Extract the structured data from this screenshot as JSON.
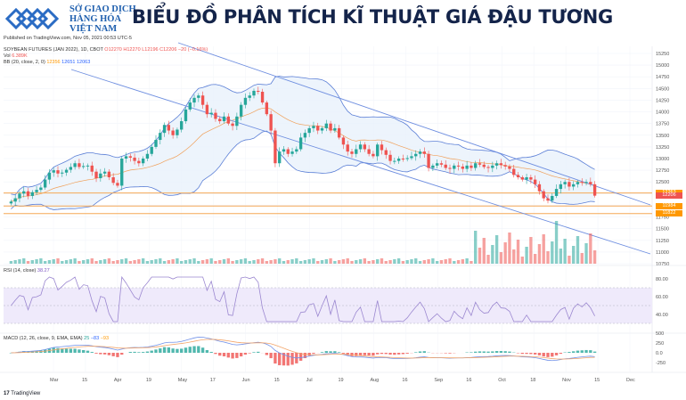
{
  "header": {
    "brand_lines": [
      "SỞ GIAO DỊCH",
      "HÀNG HÓA",
      "VIỆT NAM"
    ],
    "title": "BIỂU ĐỒ PHÂN TÍCH KĨ THUẬT GIÁ ĐẬU TƯƠNG",
    "published": "Published on TradingView.com, Nov 05, 2021 00:53 UTC-5"
  },
  "legend": {
    "symbol": "SOYBEAN FUTURES (JAN 2022), 1D, CBOT",
    "open": "O12270",
    "high": "H12270",
    "low": "L12196",
    "close": "C12206",
    "change": "−20 (−0.16%)",
    "vol_label": "Vol",
    "vol_value": "6.389K",
    "bb_label": "BB (20, close, 2, 0)",
    "bb_basis": "12356",
    "bb_upper": "12651",
    "bb_lower": "12063",
    "rsi_label": "RSI (14, close)",
    "rsi_value": "38.27",
    "macd_label": "MACD (12, 26, close, 9, EMA, EMA)",
    "macd_hist": "25",
    "macd_line": "−83",
    "macd_signal": "−93"
  },
  "footer": {
    "tradingview": "TradingView"
  },
  "colors": {
    "up": "#26a69a",
    "down": "#ef5350",
    "bb": "#5b7fd6",
    "bb_fill": "#e8f1fb",
    "basis": "#f0a05a",
    "support": "#f5a856",
    "rsi": "#9b87d0",
    "rsi_band": "#efeafb",
    "macd": "#6f90e8",
    "signal": "#f3a56a"
  },
  "price_tags": [
    {
      "label": "12263",
      "price": 12263,
      "color": "#ff9800"
    },
    {
      "label": "12206",
      "price": 12206,
      "color": "#ef5350"
    },
    {
      "label": "11984",
      "price": 11984,
      "color": "#ff9800"
    },
    {
      "label": "11822",
      "price": 11822,
      "color": "#ff9800"
    }
  ],
  "chart_data": {
    "type": "candlestick",
    "title": "SOYBEAN FUTURES (JAN 2022), 1D, CBOT",
    "price_axis": {
      "min": 10750,
      "max": 15250,
      "step": 250,
      "ticks": [
        "15250",
        "15000",
        "14750",
        "14500",
        "14250",
        "14000",
        "13750",
        "13500",
        "13250",
        "13000",
        "12750",
        "12500",
        "12250",
        "12000",
        "11750",
        "11500",
        "11250",
        "11000",
        "10750"
      ]
    },
    "x_ticks": [
      "Mar",
      "15",
      "Apr",
      "19",
      "May",
      "17",
      "Jun",
      "15",
      "Jul",
      "19",
      "Aug",
      "16",
      "Sep",
      "16",
      "Oct",
      "18",
      "Nov",
      "15",
      "Dec"
    ],
    "closes": [
      12080,
      12150,
      12250,
      12300,
      12200,
      12280,
      12330,
      12380,
      12550,
      12700,
      12750,
      12680,
      12700,
      12760,
      12820,
      12900,
      12820,
      12840,
      12850,
      12720,
      12580,
      12680,
      12720,
      12600,
      12480,
      12420,
      13000,
      13050,
      13020,
      12950,
      12900,
      13000,
      13100,
      13250,
      13400,
      13550,
      13720,
      13600,
      13500,
      13620,
      13800,
      14050,
      14200,
      14300,
      14350,
      14150,
      13950,
      13980,
      13850,
      13800,
      13900,
      13750,
      13700,
      13900,
      14150,
      14300,
      14350,
      14450,
      14430,
      14200,
      13950,
      13600,
      12900,
      13150,
      13200,
      13100,
      13150,
      13200,
      13450,
      13550,
      13650,
      13700,
      13600,
      13650,
      13750,
      13600,
      13650,
      13450,
      13300,
      13150,
      13100,
      13200,
      13300,
      13200,
      13100,
      13050,
      13300,
      13180,
      13080,
      12950,
      12950,
      13000,
      12990,
      13010,
      13050,
      13100,
      13150,
      13100,
      12800,
      12850,
      12900,
      12870,
      12800,
      12780,
      12850,
      12830,
      12780,
      12850,
      12800,
      12900,
      12870,
      12820,
      12800,
      12850,
      12900,
      12860,
      12830,
      12780,
      12650,
      12600,
      12550,
      12600,
      12550,
      12450,
      12300,
      12150,
      12100,
      12200,
      12350,
      12450,
      12500,
      12400,
      12450,
      12500,
      12480,
      12500,
      12450,
      12206
    ],
    "rsi": {
      "label": "RSI (14, close)",
      "value": 38.27,
      "axis": [
        "80.00",
        "60.00",
        "40.00"
      ],
      "band": [
        30,
        70
      ]
    },
    "macd": {
      "label": "MACD (12, 26, close, 9, EMA, EMA)",
      "histogram": 25,
      "macd": -83,
      "signal": -93,
      "axis": [
        "500",
        "250",
        "0.0",
        "-250"
      ]
    },
    "support_lines": [
      12263,
      11984,
      11822
    ],
    "volume_label": "Vol 6.389K",
    "bollinger": {
      "basis": 12356,
      "upper": 12651,
      "lower": 12063
    }
  }
}
